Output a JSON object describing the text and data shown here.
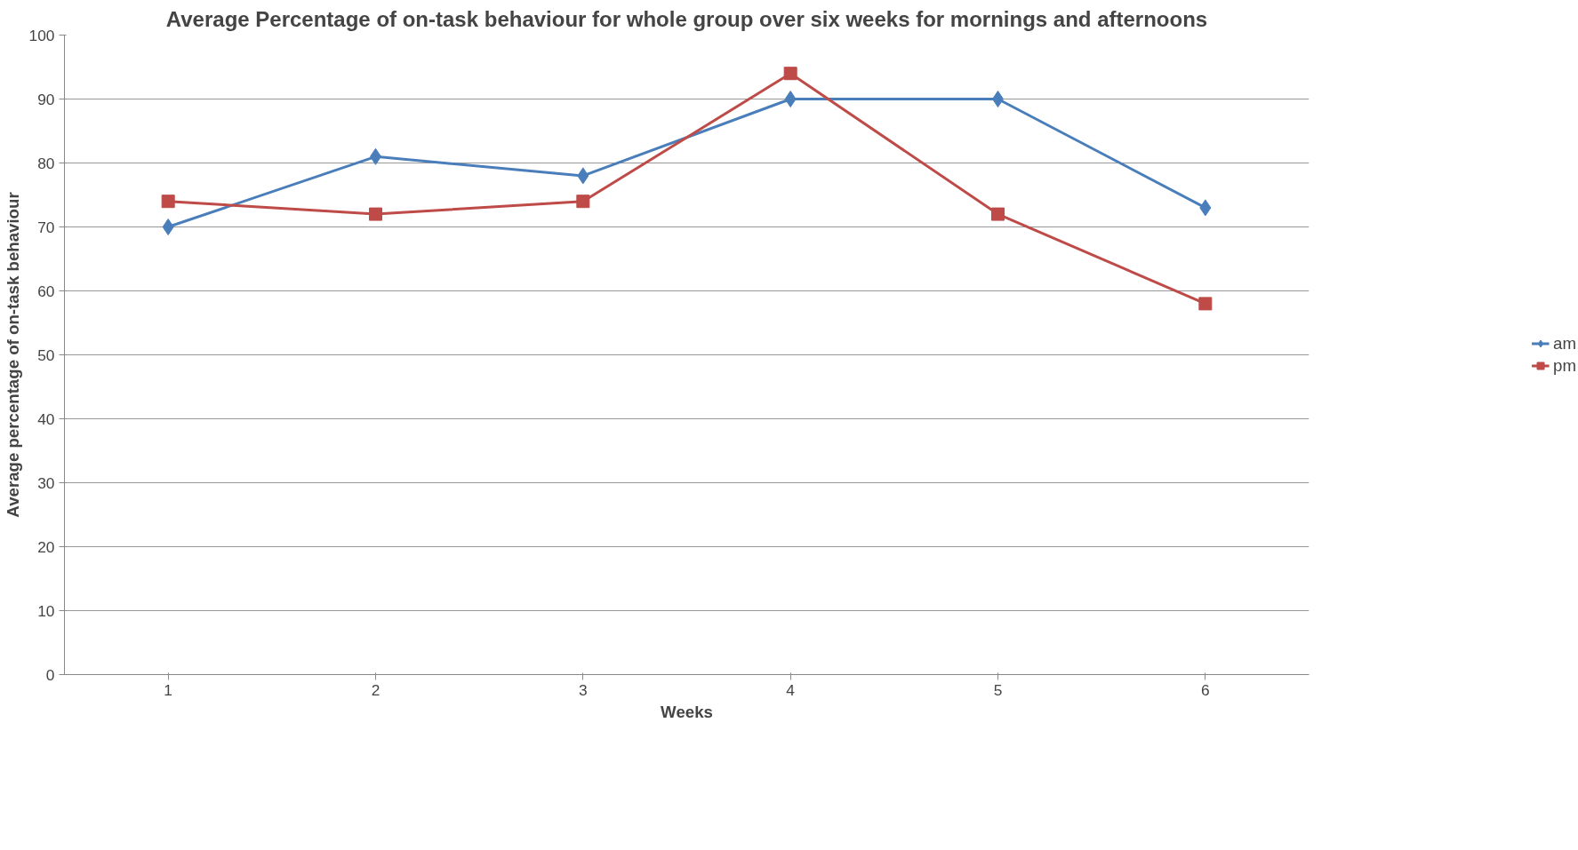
{
  "chart_data": {
    "type": "line",
    "title": "Average Percentage of on-task behaviour for whole group over six weeks for mornings and afternoons",
    "xlabel": "Weeks",
    "ylabel": "Average percentage of on-task behaviour",
    "categories": [
      "1",
      "2",
      "3",
      "4",
      "5",
      "6"
    ],
    "series": [
      {
        "name": "am",
        "color": "#4a7ebb",
        "marker": "diamond",
        "values": [
          70,
          81,
          78,
          90,
          90,
          73
        ]
      },
      {
        "name": "pm",
        "color": "#be4b48",
        "marker": "square",
        "values": [
          74,
          72,
          74,
          94,
          72,
          58
        ]
      }
    ],
    "ylim": [
      0,
      100
    ],
    "yticks": [
      0,
      10,
      20,
      30,
      40,
      50,
      60,
      70,
      80,
      90,
      100
    ],
    "grid": "y",
    "legend": "right"
  }
}
